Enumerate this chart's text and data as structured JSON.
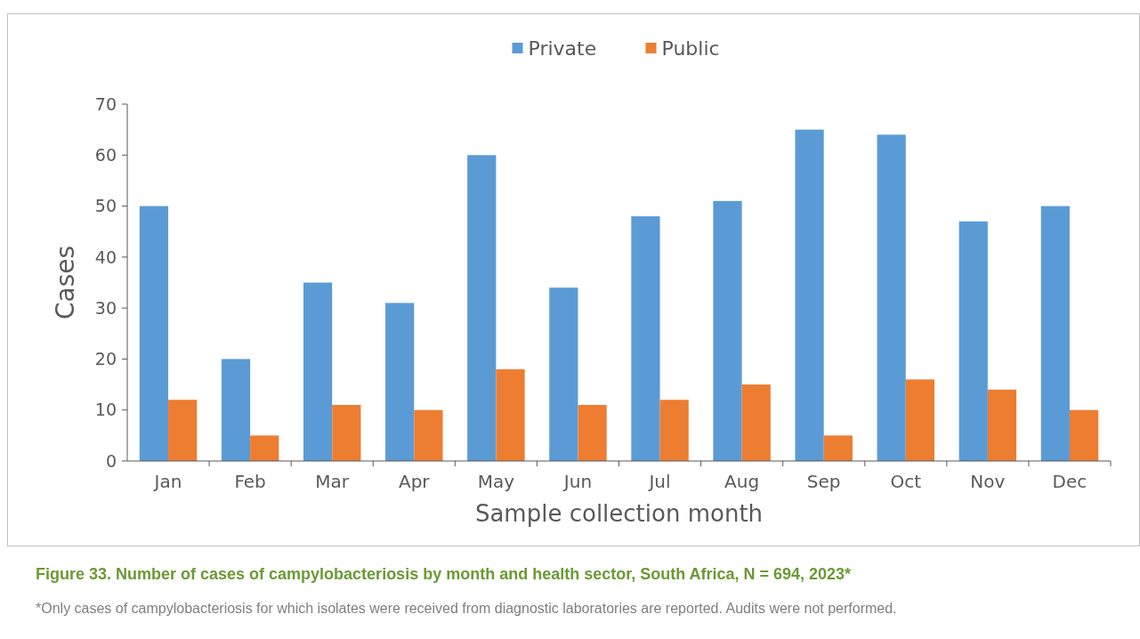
{
  "chart_data": {
    "type": "bar",
    "title": "Figure 33. Number of cases of campylobacteriosis by month and health sector, South Africa, N = 694, 2023*",
    "xlabel": "Sample collection month",
    "ylabel": "Cases",
    "categories": [
      "Jan",
      "Feb",
      "Mar",
      "Apr",
      "May",
      "Jun",
      "Jul",
      "Aug",
      "Sep",
      "Oct",
      "Nov",
      "Dec"
    ],
    "series": [
      {
        "name": "Private",
        "color": "#5b9bd5",
        "values": [
          50,
          20,
          35,
          31,
          60,
          34,
          48,
          51,
          65,
          64,
          47,
          50
        ]
      },
      {
        "name": "Public",
        "color": "#ed7d31",
        "values": [
          12,
          5,
          11,
          10,
          18,
          11,
          12,
          15,
          5,
          16,
          14,
          10
        ]
      }
    ],
    "ylim": [
      0,
      70
    ],
    "yticks": [
      0,
      10,
      20,
      30,
      40,
      50,
      60,
      70
    ],
    "grid": false,
    "legend": "top",
    "annotations": [
      "*Only cases of campylobacteriosis for which isolates were received from diagnostic laboratories are reported. Audits were not performed."
    ]
  }
}
